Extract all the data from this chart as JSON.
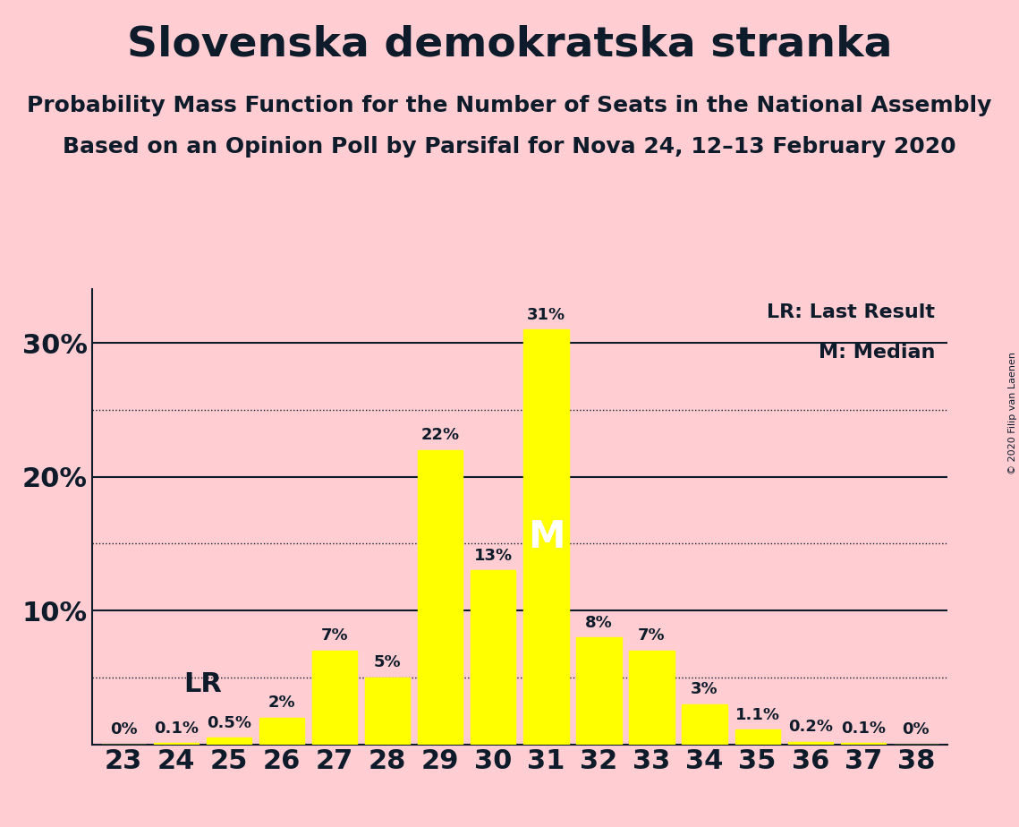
{
  "title": "Slovenska demokratska stranka",
  "subtitle1": "Probability Mass Function for the Number of Seats in the National Assembly",
  "subtitle2": "Based on an Opinion Poll by Parsifal for Nova 24, 12–13 February 2020",
  "copyright": "© 2020 Filip van Laenen",
  "seats": [
    23,
    24,
    25,
    26,
    27,
    28,
    29,
    30,
    31,
    32,
    33,
    34,
    35,
    36,
    37,
    38
  ],
  "probabilities": [
    0.0,
    0.1,
    0.5,
    2.0,
    7.0,
    5.0,
    22.0,
    13.0,
    31.0,
    8.0,
    7.0,
    3.0,
    1.1,
    0.2,
    0.1,
    0.0
  ],
  "bar_color": "#FFFF00",
  "background_color": "#FFCDD2",
  "text_color": "#0D1B2A",
  "ysolid": [
    10,
    20,
    30
  ],
  "ydotted": [
    5,
    15,
    25
  ],
  "ylim": [
    0,
    34
  ],
  "legend_lr_label": "LR: Last Result",
  "legend_m_label": "M: Median",
  "lr_seat": 25,
  "median_seat": 31,
  "title_fontsize": 34,
  "subtitle_fontsize": 18,
  "ytick_fontsize": 22,
  "xtick_fontsize": 22,
  "bar_label_fontsize": 13,
  "lr_fontsize": 22,
  "m_fontsize": 30,
  "legend_fontsize": 16,
  "copyright_fontsize": 8
}
